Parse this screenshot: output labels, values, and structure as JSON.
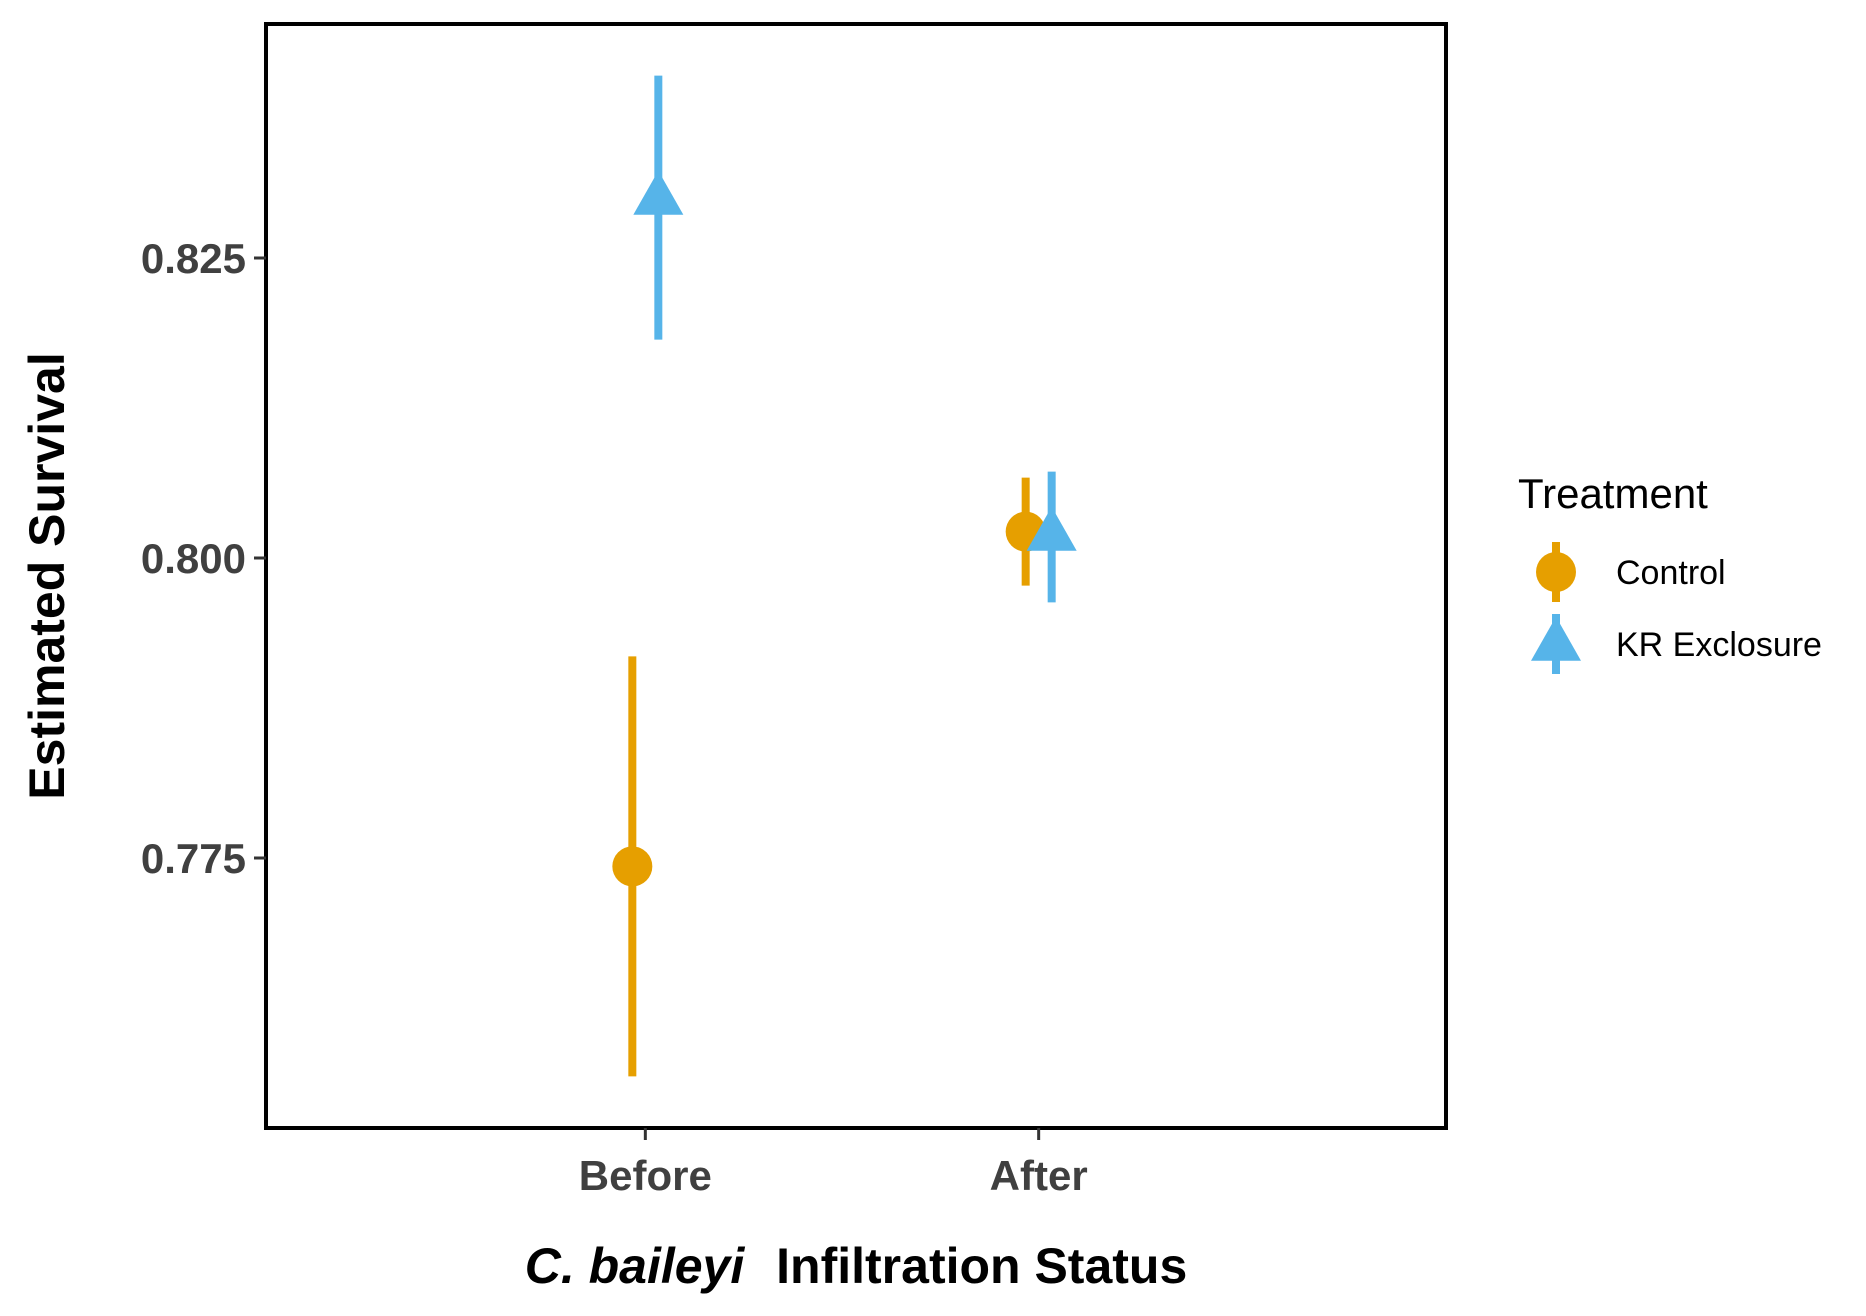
{
  "chart_data": {
    "type": "scatter",
    "title": "",
    "xlabel_italic": "C. baileyi",
    "xlabel_rest": "Infiltration Status",
    "ylabel": "Estimated Survival",
    "categories": [
      "Before",
      "After"
    ],
    "yticks": [
      "0.775",
      "0.800",
      "0.825"
    ],
    "ylim": [
      0.7525,
      0.8445
    ],
    "grid": false,
    "legend": {
      "title": "Treatment",
      "position": "right"
    },
    "series": [
      {
        "name": "Control",
        "color": "#E69F00",
        "marker": "circle",
        "points": [
          {
            "x": "Before",
            "y": 0.7743,
            "lower": 0.7568,
            "upper": 0.7918
          },
          {
            "x": "After",
            "y": 0.8022,
            "lower": 0.7977,
            "upper": 0.8067
          }
        ]
      },
      {
        "name": "KR Exclosure",
        "color": "#56B4E9",
        "marker": "triangle",
        "points": [
          {
            "x": "Before",
            "y": 0.83,
            "lower": 0.8182,
            "upper": 0.8402
          },
          {
            "x": "After",
            "y": 0.802,
            "lower": 0.7963,
            "upper": 0.8072
          }
        ]
      }
    ]
  }
}
